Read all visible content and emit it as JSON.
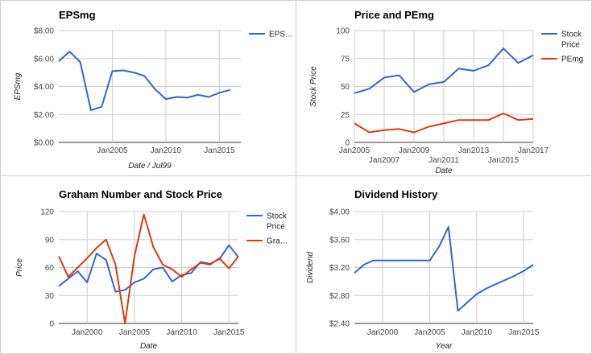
{
  "chart_data": [
    {
      "type": "line",
      "title": "EPSmg",
      "xlabel": "Date / Jul99",
      "ylabel": "EPSmg",
      "ylim": [
        0,
        8
      ],
      "yticks": [
        "$0.00",
        "$2.00",
        "$4.00",
        "$6.00",
        "$8.00"
      ],
      "xlim": [
        2000,
        2017
      ],
      "xticks": [
        "Jan2005",
        "Jan2010",
        "Jan2015"
      ],
      "legend_position": "right",
      "grid": true,
      "series": [
        {
          "name": "EPS…",
          "color": "#3366cc",
          "x": [
            2000,
            2001,
            2002,
            2003,
            2004,
            2005,
            2006,
            2007,
            2008,
            2009,
            2010,
            2011,
            2012,
            2013,
            2014,
            2015,
            2016
          ],
          "values": [
            5.8,
            6.5,
            5.75,
            2.3,
            2.55,
            5.1,
            5.15,
            5.0,
            4.75,
            3.8,
            3.1,
            3.25,
            3.2,
            3.4,
            3.25,
            3.55,
            3.75
          ]
        }
      ]
    },
    {
      "type": "line",
      "title": "Price and PEmg",
      "xlabel": "Date",
      "ylabel": "Stock Price",
      "ylim": [
        0,
        100
      ],
      "yticks": [
        "0",
        "25",
        "50",
        "75",
        "100"
      ],
      "xlim": [
        2005,
        2017
      ],
      "xticks_top": [
        "Jan2005",
        "Jan2009",
        "Jan2013",
        "Jan2017"
      ],
      "xticks_bottom": [
        "Jan2007",
        "Jan2011",
        "Jan2015"
      ],
      "legend_position": "right",
      "grid": true,
      "series": [
        {
          "name": "Stock Price",
          "color": "#3366cc",
          "x": [
            2005,
            2006,
            2007,
            2008,
            2009,
            2010,
            2011,
            2012,
            2013,
            2014,
            2015,
            2016,
            2017
          ],
          "values": [
            44,
            48,
            58,
            60,
            45,
            52,
            54,
            66,
            64,
            69,
            84,
            71,
            78
          ]
        },
        {
          "name": "PEmg",
          "color": "#dc3912",
          "x": [
            2005,
            2006,
            2007,
            2008,
            2009,
            2010,
            2011,
            2012,
            2013,
            2014,
            2015,
            2016,
            2017
          ],
          "values": [
            17,
            9,
            11,
            12,
            9,
            14,
            17,
            20,
            20,
            20,
            26,
            20,
            21
          ]
        }
      ]
    },
    {
      "type": "line",
      "title": "Graham Number and Stock Price",
      "xlabel": "Date",
      "ylabel": "Price",
      "ylim": [
        0,
        120
      ],
      "yticks": [
        "0",
        "30",
        "60",
        "90",
        "120"
      ],
      "xlim": [
        1997,
        2016
      ],
      "xticks": [
        "Jan2000",
        "Jan2005",
        "Jan2010",
        "Jan2015"
      ],
      "legend_position": "right",
      "grid": true,
      "series": [
        {
          "name": "Stock Price",
          "color": "#3366cc",
          "x": [
            1997,
            1998,
            1999,
            2000,
            2001,
            2002,
            2003,
            2004,
            2005,
            2006,
            2007,
            2008,
            2009,
            2010,
            2011,
            2012,
            2013,
            2014,
            2015,
            2016
          ],
          "values": [
            40,
            48,
            56,
            44,
            75,
            68,
            34,
            36,
            44,
            48,
            58,
            60,
            45,
            52,
            54,
            66,
            64,
            69,
            84,
            71
          ]
        },
        {
          "name": "Gra…",
          "color": "#dc3912",
          "x": [
            1997,
            1998,
            1999,
            2000,
            2001,
            2002,
            2003,
            2004,
            2005,
            2006,
            2007,
            2008,
            2009,
            2010,
            2011,
            2012,
            2013,
            2014,
            2015,
            2016
          ],
          "values": [
            72,
            50,
            60,
            70,
            81,
            90,
            63,
            0,
            72,
            117,
            82,
            63,
            58,
            50,
            58,
            65,
            63,
            70,
            59,
            72
          ]
        }
      ]
    },
    {
      "type": "line",
      "title": "Dividend History",
      "xlabel": "Year",
      "ylabel": "Dividend",
      "ylim": [
        2.4,
        4.0
      ],
      "yticks": [
        "$2.40",
        "$2.80",
        "$3.20",
        "$3.60",
        "$4.00"
      ],
      "xlim": [
        1997,
        2016
      ],
      "xticks": [
        "Jan2000",
        "Jan2005",
        "Jan2010",
        "Jan2015"
      ],
      "grid": true,
      "series": [
        {
          "name": "",
          "color": "#3366cc",
          "x": [
            1997,
            1998,
            1999,
            2000,
            2001,
            2002,
            2003,
            2004,
            2005,
            2006,
            2007,
            2008,
            2009,
            2010,
            2011,
            2012,
            2013,
            2014,
            2015,
            2016
          ],
          "values": [
            3.12,
            3.24,
            3.3,
            3.3,
            3.3,
            3.3,
            3.3,
            3.3,
            3.3,
            3.5,
            3.78,
            2.58,
            2.7,
            2.82,
            2.9,
            2.96,
            3.02,
            3.08,
            3.15,
            3.24
          ]
        }
      ]
    }
  ]
}
